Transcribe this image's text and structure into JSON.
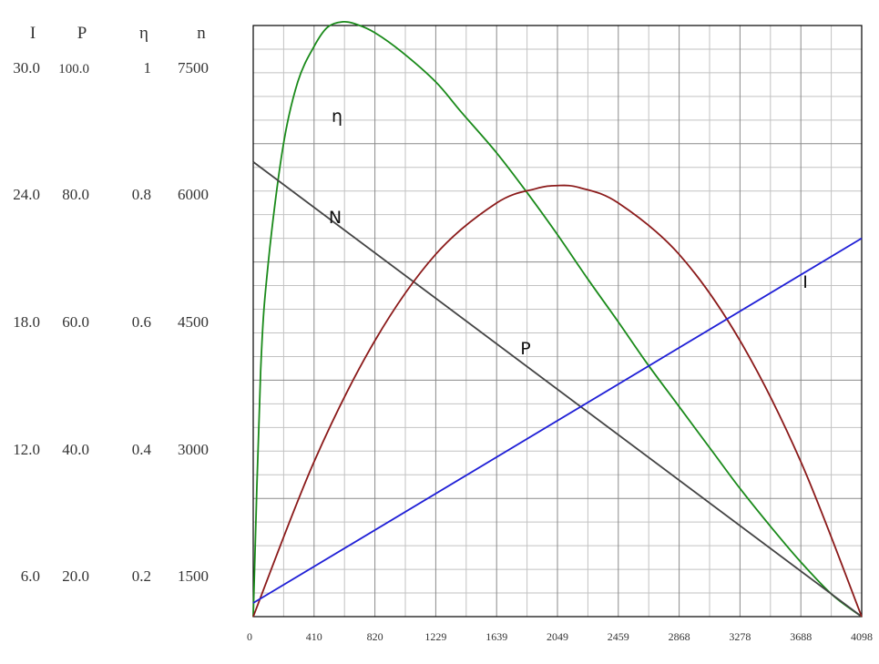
{
  "chart_data": {
    "type": "line",
    "title": "",
    "xlabel": "",
    "x_ticks": [
      0,
      410,
      820,
      1229,
      1639,
      2049,
      2459,
      2868,
      3278,
      3688,
      4098
    ],
    "xlim": [
      0,
      4098
    ],
    "grid": true,
    "left_axes": {
      "headers": [
        "I",
        "P",
        "η",
        "n"
      ],
      "rows": [
        [
          "30.0",
          "100.0",
          "1",
          "7500"
        ],
        [
          "24.0",
          "80.0",
          "0.8",
          "6000"
        ],
        [
          "18.0",
          "60.0",
          "0.6",
          "4500"
        ],
        [
          "12.0",
          "40.0",
          "0.4",
          "3000"
        ],
        [
          "6.0",
          "20.0",
          "0.2",
          "1500"
        ]
      ]
    },
    "series": [
      {
        "name": "η",
        "axis": "η",
        "color": "#1a8a1a",
        "x": [
          0,
          50,
          100,
          200,
          300,
          410,
          500,
          600,
          700,
          820,
          1000,
          1229,
          1400,
          1639,
          1850,
          2049,
          2250,
          2459,
          2650,
          2868,
          3100,
          3278,
          3500,
          3688,
          3900,
          4098
        ],
        "y": [
          0,
          0.45,
          0.645,
          0.86,
          0.98,
          1.045,
          1.08,
          1.09,
          1.085,
          1.07,
          1.035,
          0.98,
          0.925,
          0.85,
          0.775,
          0.7,
          0.62,
          0.54,
          0.465,
          0.385,
          0.3,
          0.235,
          0.16,
          0.1,
          0.04,
          0
        ]
      },
      {
        "name": "N",
        "axis": "n",
        "color": "#444444",
        "x": [
          0,
          4098
        ],
        "y": [
          6250,
          0
        ]
      },
      {
        "name": "P",
        "axis": "P",
        "color": "#8b1a1a",
        "x": [
          0,
          410,
          820,
          1229,
          1639,
          1900,
          2049,
          2200,
          2459,
          2868,
          3278,
          3688,
          4098
        ],
        "y": [
          0,
          28.4,
          50.6,
          66.4,
          75.8,
          78.4,
          79.0,
          78.6,
          75.8,
          66.4,
          50.6,
          28.4,
          0
        ]
      },
      {
        "name": "I",
        "axis": "I",
        "color": "#1f1fd6",
        "x": [
          0,
          4098
        ],
        "y": [
          0.75,
          20.8
        ]
      }
    ]
  }
}
